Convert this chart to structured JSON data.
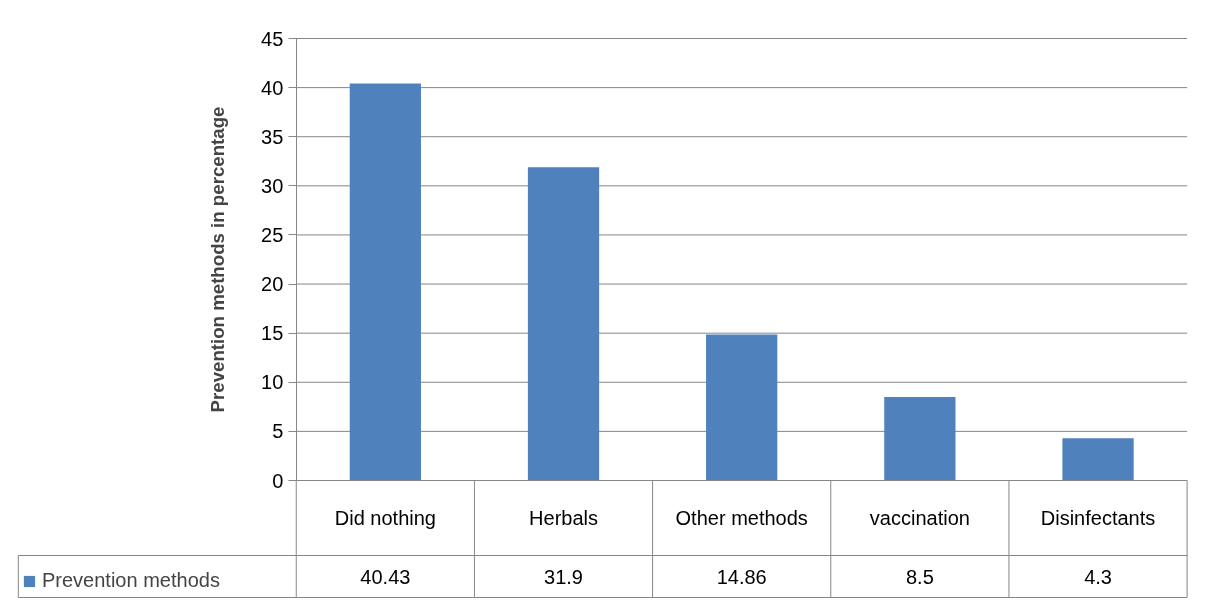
{
  "chart_data": {
    "type": "bar",
    "ylabel": "Prevention methods in percentage",
    "categories": [
      "Did nothing",
      "Herbals",
      "Other methods",
      "vaccination",
      "Disinfectants"
    ],
    "series": [
      {
        "name": "Prevention methods",
        "color": "#4f81bd",
        "values": [
          40.43,
          31.9,
          14.86,
          8.5,
          4.3
        ]
      }
    ],
    "ylim": [
      0,
      45
    ],
    "yticks": [
      0,
      5,
      10,
      15,
      20,
      25,
      30,
      35,
      40,
      45
    ],
    "grid": "y",
    "legend": "bottom",
    "data_labels": true
  }
}
